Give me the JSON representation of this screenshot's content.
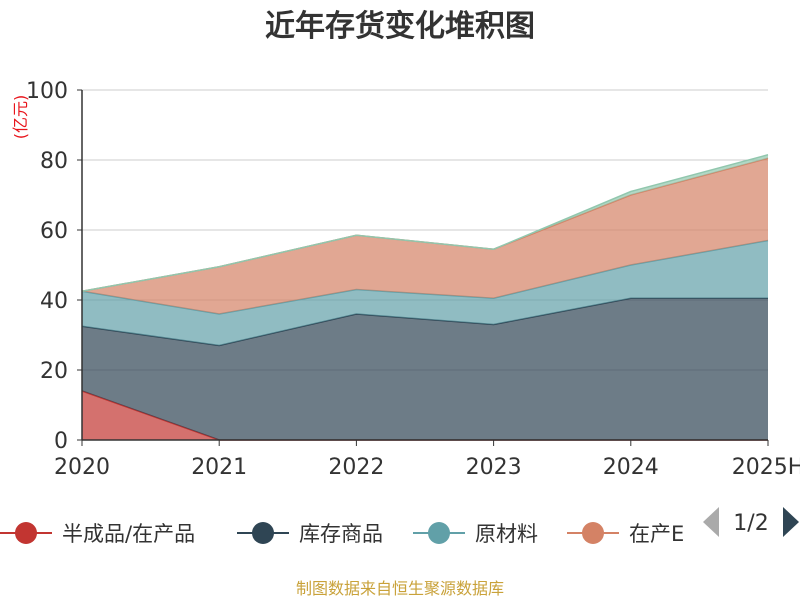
{
  "chart_data": {
    "type": "area",
    "stacked": true,
    "title": "近年存货变化堆积图",
    "unit_label": "(亿元)",
    "categories": [
      "2020",
      "2021",
      "2022",
      "2023",
      "2024",
      "2025H"
    ],
    "ylim": [
      0,
      100
    ],
    "yticks": [
      0,
      20,
      40,
      60,
      80,
      100
    ],
    "grid": true,
    "series": [
      {
        "name": "半成品/在产品",
        "color": "#c23531",
        "values": [
          14,
          0,
          0,
          0,
          0,
          0
        ]
      },
      {
        "name": "库存商品",
        "color": "#2f4554",
        "values": [
          18.5,
          27,
          36,
          33,
          40.5,
          40.5
        ]
      },
      {
        "name": "原材料",
        "color": "#61a0a8",
        "values": [
          10,
          9,
          7,
          7.5,
          9.5,
          16.5
        ]
      },
      {
        "name": "在产品",
        "color": "#d48265",
        "values": [
          0,
          13.5,
          15.5,
          14,
          20,
          23.5
        ]
      },
      {
        "name": "",
        "color": "#91c7ae",
        "values": [
          0,
          0,
          0,
          0,
          1,
          1
        ]
      }
    ],
    "legend_position": "bottom"
  },
  "legend": {
    "visible_items": [
      "半成品/在产品",
      "库存商品",
      "原材料",
      "在产品"
    ],
    "truncated_last_label": "在产E",
    "page_indicator": "1/2"
  },
  "source_text": "制图数据来自恒生聚源数据库"
}
